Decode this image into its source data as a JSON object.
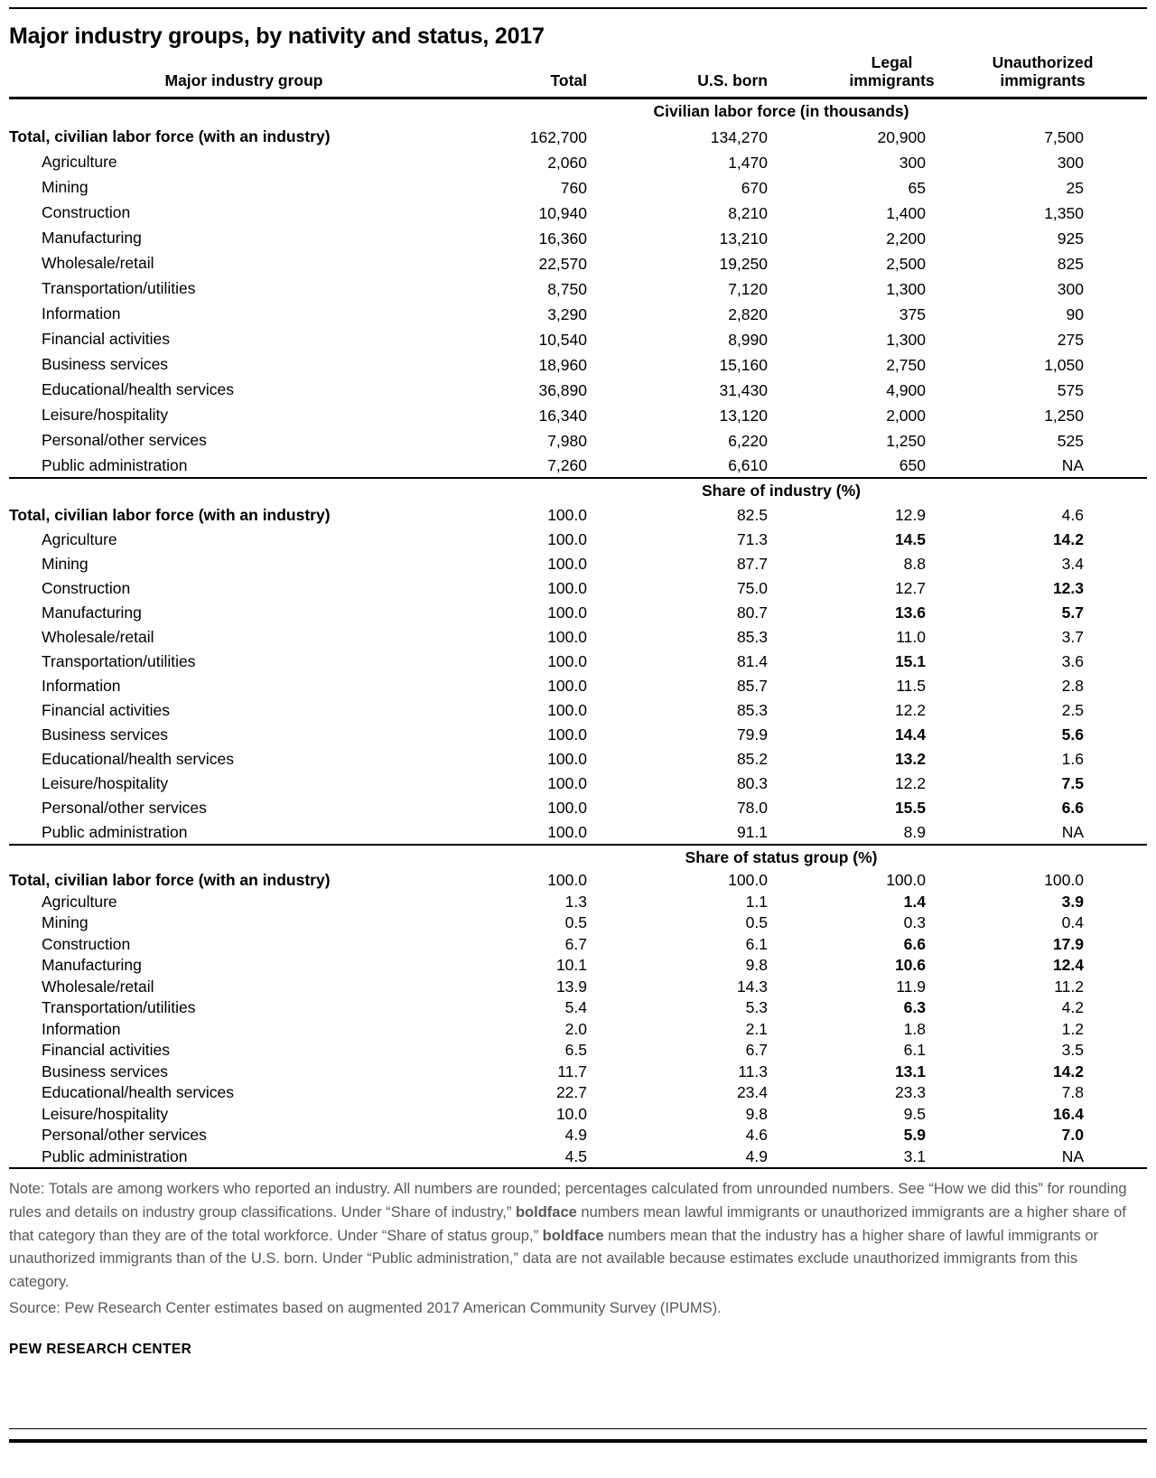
{
  "title": "Major industry groups, by nativity and status, 2017",
  "chart_data": {
    "type": "table",
    "title": "Major industry groups, by nativity and status, 2017",
    "columns": [
      "Major industry group",
      "Total",
      "U.S. born",
      "Legal immigrants",
      "Unauthorized immigrants"
    ],
    "sections": [
      {
        "header": "Civilian labor force (in thousands)",
        "rows": [
          {
            "label": "Total, civilian labor force (with an industry)",
            "is_total": true,
            "values": [
              "162,700",
              "134,270",
              "20,900",
              "7,500"
            ],
            "bold": []
          },
          {
            "label": "Agriculture",
            "is_total": false,
            "values": [
              "2,060",
              "1,470",
              "300",
              "300"
            ],
            "bold": []
          },
          {
            "label": "Mining",
            "is_total": false,
            "values": [
              "760",
              "670",
              "65",
              "25"
            ],
            "bold": []
          },
          {
            "label": "Construction",
            "is_total": false,
            "values": [
              "10,940",
              "8,210",
              "1,400",
              "1,350"
            ],
            "bold": []
          },
          {
            "label": "Manufacturing",
            "is_total": false,
            "values": [
              "16,360",
              "13,210",
              "2,200",
              "925"
            ],
            "bold": []
          },
          {
            "label": "Wholesale/retail",
            "is_total": false,
            "values": [
              "22,570",
              "19,250",
              "2,500",
              "825"
            ],
            "bold": []
          },
          {
            "label": "Transportation/utilities",
            "is_total": false,
            "values": [
              "8,750",
              "7,120",
              "1,300",
              "300"
            ],
            "bold": []
          },
          {
            "label": "Information",
            "is_total": false,
            "values": [
              "3,290",
              "2,820",
              "375",
              "90"
            ],
            "bold": []
          },
          {
            "label": "Financial activities",
            "is_total": false,
            "values": [
              "10,540",
              "8,990",
              "1,300",
              "275"
            ],
            "bold": []
          },
          {
            "label": "Business services",
            "is_total": false,
            "values": [
              "18,960",
              "15,160",
              "2,750",
              "1,050"
            ],
            "bold": []
          },
          {
            "label": "Educational/health services",
            "is_total": false,
            "values": [
              "36,890",
              "31,430",
              "4,900",
              "575"
            ],
            "bold": []
          },
          {
            "label": "Leisure/hospitality",
            "is_total": false,
            "values": [
              "16,340",
              "13,120",
              "2,000",
              "1,250"
            ],
            "bold": []
          },
          {
            "label": "Personal/other services",
            "is_total": false,
            "values": [
              "7,980",
              "6,220",
              "1,250",
              "525"
            ],
            "bold": []
          },
          {
            "label": "Public administration",
            "is_total": false,
            "values": [
              "7,260",
              "6,610",
              "650",
              "NA"
            ],
            "bold": []
          }
        ]
      },
      {
        "header": "Share of industry (%)",
        "rows": [
          {
            "label": "Total, civilian labor force (with an industry)",
            "is_total": true,
            "values": [
              "100.0",
              "82.5",
              "12.9",
              "4.6"
            ],
            "bold": []
          },
          {
            "label": "Agriculture",
            "is_total": false,
            "values": [
              "100.0",
              "71.3",
              "14.5",
              "14.2"
            ],
            "bold": [
              2,
              3
            ]
          },
          {
            "label": "Mining",
            "is_total": false,
            "values": [
              "100.0",
              "87.7",
              "8.8",
              "3.4"
            ],
            "bold": []
          },
          {
            "label": "Construction",
            "is_total": false,
            "values": [
              "100.0",
              "75.0",
              "12.7",
              "12.3"
            ],
            "bold": [
              3
            ]
          },
          {
            "label": "Manufacturing",
            "is_total": false,
            "values": [
              "100.0",
              "80.7",
              "13.6",
              "5.7"
            ],
            "bold": [
              2,
              3
            ]
          },
          {
            "label": "Wholesale/retail",
            "is_total": false,
            "values": [
              "100.0",
              "85.3",
              "11.0",
              "3.7"
            ],
            "bold": []
          },
          {
            "label": "Transportation/utilities",
            "is_total": false,
            "values": [
              "100.0",
              "81.4",
              "15.1",
              "3.6"
            ],
            "bold": [
              2
            ]
          },
          {
            "label": "Information",
            "is_total": false,
            "values": [
              "100.0",
              "85.7",
              "11.5",
              "2.8"
            ],
            "bold": []
          },
          {
            "label": "Financial activities",
            "is_total": false,
            "values": [
              "100.0",
              "85.3",
              "12.2",
              "2.5"
            ],
            "bold": []
          },
          {
            "label": "Business services",
            "is_total": false,
            "values": [
              "100.0",
              "79.9",
              "14.4",
              "5.6"
            ],
            "bold": [
              2,
              3
            ]
          },
          {
            "label": "Educational/health services",
            "is_total": false,
            "values": [
              "100.0",
              "85.2",
              "13.2",
              "1.6"
            ],
            "bold": [
              2
            ]
          },
          {
            "label": "Leisure/hospitality",
            "is_total": false,
            "values": [
              "100.0",
              "80.3",
              "12.2",
              "7.5"
            ],
            "bold": [
              3
            ]
          },
          {
            "label": "Personal/other services",
            "is_total": false,
            "values": [
              "100.0",
              "78.0",
              "15.5",
              "6.6"
            ],
            "bold": [
              2,
              3
            ]
          },
          {
            "label": "Public administration",
            "is_total": false,
            "values": [
              "100.0",
              "91.1",
              "8.9",
              "NA"
            ],
            "bold": []
          }
        ]
      },
      {
        "header": "Share of status group (%)",
        "rows": [
          {
            "label": "Total, civilian labor force (with an industry)",
            "is_total": true,
            "values": [
              "100.0",
              "100.0",
              "100.0",
              "100.0"
            ],
            "bold": []
          },
          {
            "label": "Agriculture",
            "is_total": false,
            "values": [
              "1.3",
              "1.1",
              "1.4",
              "3.9"
            ],
            "bold": [
              2,
              3
            ]
          },
          {
            "label": "Mining",
            "is_total": false,
            "values": [
              "0.5",
              "0.5",
              "0.3",
              "0.4"
            ],
            "bold": []
          },
          {
            "label": "Construction",
            "is_total": false,
            "values": [
              "6.7",
              "6.1",
              "6.6",
              "17.9"
            ],
            "bold": [
              2,
              3
            ]
          },
          {
            "label": "Manufacturing",
            "is_total": false,
            "values": [
              "10.1",
              "9.8",
              "10.6",
              "12.4"
            ],
            "bold": [
              2,
              3
            ]
          },
          {
            "label": "Wholesale/retail",
            "is_total": false,
            "values": [
              "13.9",
              "14.3",
              "11.9",
              "11.2"
            ],
            "bold": []
          },
          {
            "label": "Transportation/utilities",
            "is_total": false,
            "values": [
              "5.4",
              "5.3",
              "6.3",
              "4.2"
            ],
            "bold": [
              2
            ]
          },
          {
            "label": "Information",
            "is_total": false,
            "values": [
              "2.0",
              "2.1",
              "1.8",
              "1.2"
            ],
            "bold": []
          },
          {
            "label": "Financial activities",
            "is_total": false,
            "values": [
              "6.5",
              "6.7",
              "6.1",
              "3.5"
            ],
            "bold": []
          },
          {
            "label": "Business services",
            "is_total": false,
            "values": [
              "11.7",
              "11.3",
              "13.1",
              "14.2"
            ],
            "bold": [
              2,
              3
            ]
          },
          {
            "label": "Educational/health services",
            "is_total": false,
            "values": [
              "22.7",
              "23.4",
              "23.3",
              "7.8"
            ],
            "bold": []
          },
          {
            "label": "Leisure/hospitality",
            "is_total": false,
            "values": [
              "10.0",
              "9.8",
              "9.5",
              "16.4"
            ],
            "bold": [
              3
            ]
          },
          {
            "label": "Personal/other services",
            "is_total": false,
            "values": [
              "4.9",
              "4.6",
              "5.9",
              "7.0"
            ],
            "bold": [
              2,
              3
            ]
          },
          {
            "label": "Public administration",
            "is_total": false,
            "values": [
              "4.5",
              "4.9",
              "3.1",
              "NA"
            ],
            "bold": []
          }
        ]
      }
    ]
  },
  "note_segments": [
    {
      "text": "Note: Totals are among workers who reported an industry. All numbers are rounded; percentages calculated from unrounded numbers. See “How we did this” for rounding rules and details on industry group classifications. Under “Share of industry,” ",
      "bold": false
    },
    {
      "text": "boldface",
      "bold": true
    },
    {
      "text": " numbers mean lawful immigrants or unauthorized immigrants are a higher share of that category than they are of the total workforce. Under “Share of status group,” ",
      "bold": false
    },
    {
      "text": "boldface",
      "bold": true
    },
    {
      "text": " numbers mean that the industry has a higher share of lawful immigrants or unauthorized immigrants than of the U.S. born. Under “Public administration,” data are not available because estimates exclude unauthorized immigrants from this category.",
      "bold": false
    }
  ],
  "source": "Source: Pew Research Center estimates based on augmented 2017 American Community Survey (IPUMS).",
  "brand": "PEW RESEARCH CENTER",
  "colors": {
    "text": "#000000",
    "note_gray": "#58585a",
    "rule": "#000000"
  }
}
